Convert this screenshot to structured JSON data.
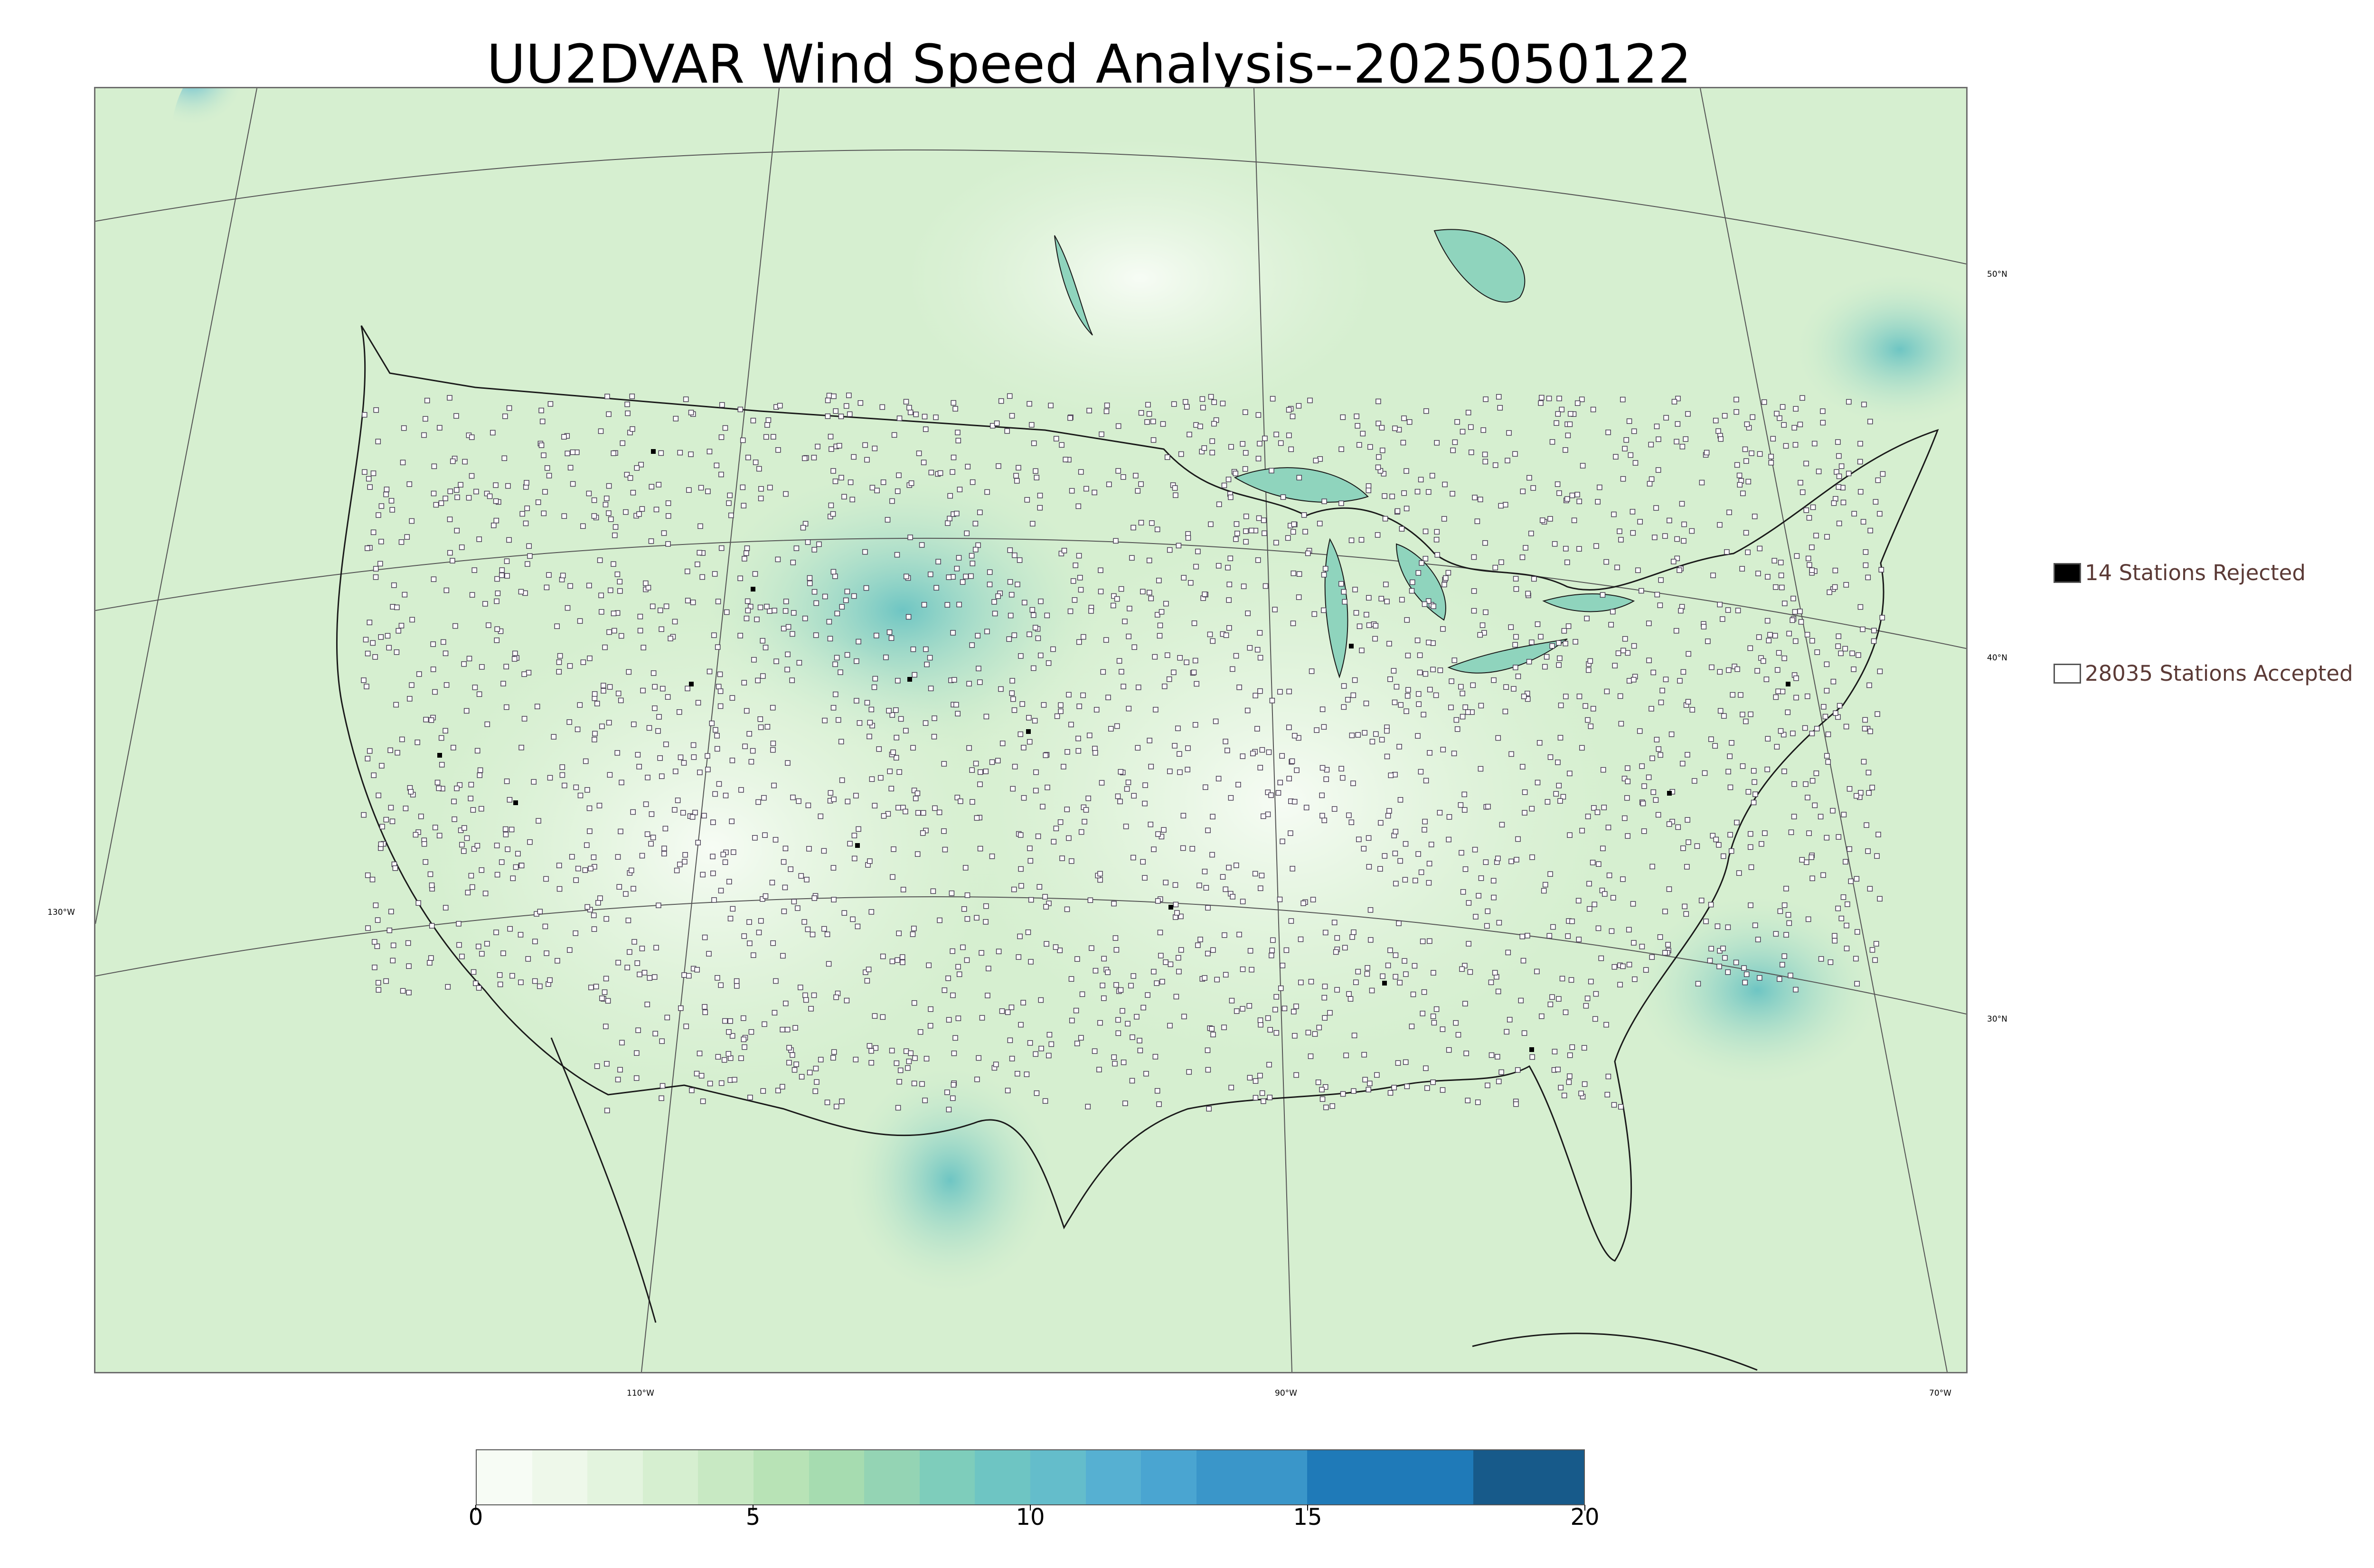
{
  "title": "UU2DVAR Wind Speed Analysis--2025050122",
  "map": {
    "projection": "lambert-conformal",
    "region": "CONUS",
    "colors": {
      "calm": "#f2faef",
      "light": "#c9eacb",
      "moderate": "#8fd4bd",
      "strong": "#4fb3d4",
      "very_strong": "#2484be",
      "land_outline": "#1a1a1a",
      "grid_line": "#555555"
    }
  },
  "coordinate_labels": {
    "lat_50": "50°N",
    "lat_40": "40°N",
    "lat_30": "30°N",
    "lon_130": "130°W",
    "lon_110": "110°W",
    "lon_90": "90°W",
    "lon_70": "70°W"
  },
  "legend": {
    "rejected": {
      "label": "14 Stations Rejected",
      "color": "#000000",
      "count": 14
    },
    "accepted": {
      "label": "28035 Stations Accepted",
      "color": "#ffffff",
      "count": 28035
    }
  },
  "colorbar": {
    "min": 0,
    "max": 20,
    "ticks": [
      "0",
      "5",
      "10",
      "15",
      "20"
    ],
    "bins": [
      {
        "from": 0,
        "to": 1,
        "color": "#f7fcf5"
      },
      {
        "from": 1,
        "to": 2,
        "color": "#eef8ea"
      },
      {
        "from": 2,
        "to": 3,
        "color": "#e3f4de"
      },
      {
        "from": 3,
        "to": 4,
        "color": "#d6efd0"
      },
      {
        "from": 4,
        "to": 5,
        "color": "#c8e9c3"
      },
      {
        "from": 5,
        "to": 6,
        "color": "#b8e3b6"
      },
      {
        "from": 6,
        "to": 7,
        "color": "#a6dcb0"
      },
      {
        "from": 7,
        "to": 8,
        "color": "#94d4b4"
      },
      {
        "from": 8,
        "to": 9,
        "color": "#7ecdbb"
      },
      {
        "from": 9,
        "to": 10,
        "color": "#6ec5c3"
      },
      {
        "from": 10,
        "to": 11,
        "color": "#64bdcb"
      },
      {
        "from": 11,
        "to": 12,
        "color": "#56b0d2"
      },
      {
        "from": 12,
        "to": 13,
        "color": "#4aa5d1"
      },
      {
        "from": 13,
        "to": 15,
        "color": "#3a96c9"
      },
      {
        "from": 15,
        "to": 18,
        "color": "#1f7ab8"
      },
      {
        "from": 18,
        "to": 20,
        "color": "#175a8a"
      }
    ]
  }
}
